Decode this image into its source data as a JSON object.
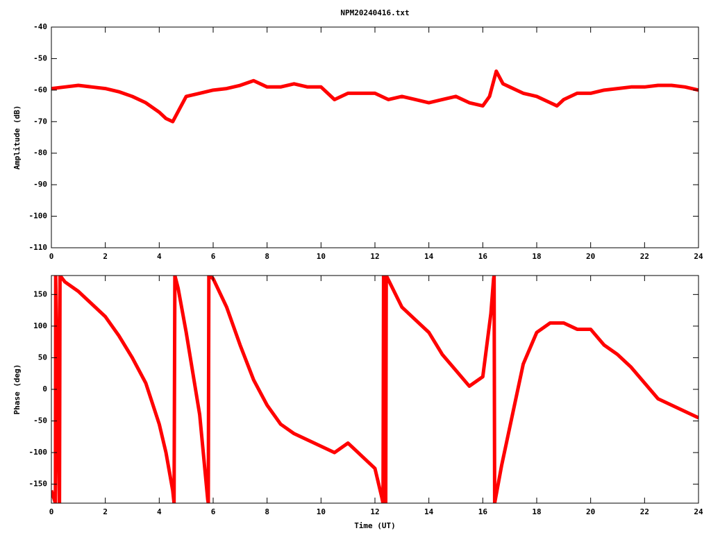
{
  "title": "NPM20240416.txt",
  "chart_data": [
    {
      "type": "line",
      "ylabel": "Amplitude (dB)",
      "x": [
        0,
        0.5,
        1,
        1.5,
        2,
        2.5,
        3,
        3.5,
        4,
        4.25,
        4.5,
        4.75,
        5,
        5.5,
        6,
        6.5,
        7,
        7.5,
        8,
        8.5,
        9,
        9.5,
        10,
        10.5,
        11,
        11.5,
        12,
        12.5,
        13,
        13.5,
        14,
        14.5,
        15,
        15.5,
        16,
        16.25,
        16.5,
        16.75,
        17,
        17.5,
        18,
        18.5,
        18.75,
        19,
        19.5,
        20,
        20.5,
        21,
        21.5,
        22,
        22.5,
        23,
        23.5,
        24
      ],
      "series": [
        {
          "color": "#ff0000",
          "values": [
            -59.5,
            -59,
            -58.5,
            -59,
            -59.5,
            -60.5,
            -62,
            -64,
            -67,
            -69,
            -70,
            -66,
            -62,
            -61,
            -60,
            -59.5,
            -58.5,
            -57,
            -59,
            -59,
            -58,
            -59,
            -59,
            -63,
            -61,
            -61,
            -61,
            -63,
            -62,
            -63,
            -64,
            -63,
            -62,
            -64,
            -65,
            -62,
            -54,
            -58,
            -59,
            -61,
            -62,
            -64,
            -65,
            -63,
            -61,
            -61,
            -60,
            -59.5,
            -59,
            -59,
            -58.5,
            -58.5,
            -59,
            -60
          ]
        }
      ],
      "xlim": [
        0,
        24
      ],
      "xticks": [
        0,
        2,
        4,
        6,
        8,
        10,
        12,
        14,
        16,
        18,
        20,
        22,
        24
      ],
      "ylim": [
        -110,
        -40
      ],
      "yticks": [
        -110,
        -100,
        -90,
        -80,
        -70,
        -60,
        -50,
        -40
      ]
    },
    {
      "type": "line",
      "ylabel": "Phase (deg)",
      "xlabel": "Time (UT)",
      "x": [
        0,
        0.15,
        0.16,
        0.3,
        0.32,
        0.5,
        1,
        1.5,
        2,
        2.5,
        3,
        3.5,
        4,
        4.25,
        4.5,
        4.55,
        4.58,
        4.7,
        5,
        5.5,
        5.8,
        5.82,
        5.84,
        6,
        6.5,
        7,
        7.5,
        8,
        8.5,
        9,
        9.5,
        10,
        10.5,
        11,
        11.5,
        12,
        12.25,
        12.3,
        12.32,
        12.4,
        12.42,
        13,
        13.5,
        14,
        14.5,
        15,
        15.5,
        16,
        16.3,
        16.4,
        16.42,
        16.44,
        16.7,
        17,
        17.5,
        18,
        18.5,
        19,
        19.5,
        20,
        20.5,
        21,
        21.5,
        22,
        22.5,
        23,
        23.5,
        24
      ],
      "series": [
        {
          "color": "#ff0000",
          "values": [
            -160,
            -180,
            180,
            -180,
            180,
            170,
            155,
            135,
            115,
            85,
            50,
            10,
            -55,
            -100,
            -160,
            -180,
            180,
            160,
            90,
            -40,
            -175,
            -180,
            180,
            175,
            130,
            70,
            15,
            -25,
            -55,
            -70,
            -80,
            -90,
            -100,
            -85,
            -105,
            -125,
            -170,
            -180,
            180,
            -180,
            180,
            130,
            110,
            90,
            55,
            30,
            5,
            20,
            120,
            175,
            180,
            -180,
            -120,
            -60,
            40,
            90,
            105,
            105,
            95,
            95,
            70,
            55,
            35,
            10,
            -15,
            -25,
            -35,
            -45
          ]
        }
      ],
      "xlim": [
        0,
        24
      ],
      "xticks": [
        0,
        2,
        4,
        6,
        8,
        10,
        12,
        14,
        16,
        18,
        20,
        22,
        24
      ],
      "ylim": [
        -180,
        180
      ],
      "yticks": [
        -150,
        -100,
        -50,
        0,
        50,
        100,
        150
      ]
    }
  ]
}
